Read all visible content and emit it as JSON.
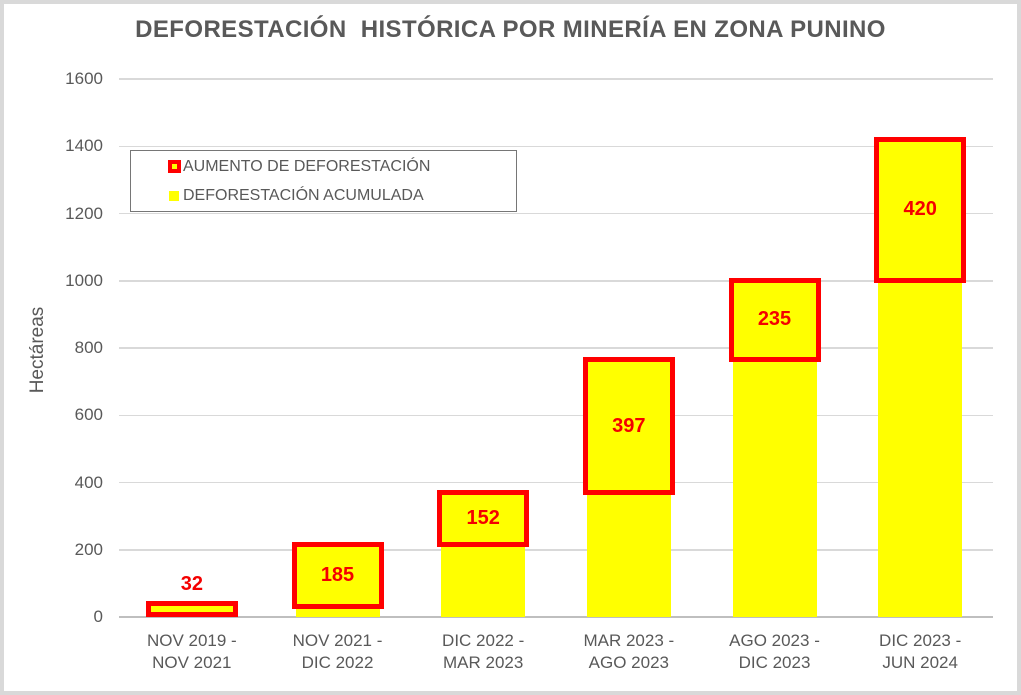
{
  "title": "DEFORESTACIÓN  HISTÓRICA POR MINERÍA EN ZONA PUNINO",
  "y_axis": {
    "label": "Hectáreas",
    "ticks": [
      0,
      200,
      400,
      600,
      800,
      1000,
      1200,
      1400,
      1600
    ]
  },
  "legend": {
    "items": [
      {
        "label": "AUMENTO DE DEFORESTACIÓN",
        "swatch": "red-outlined-yellow-square"
      },
      {
        "label": "DEFORESTACIÓN ACUMULADA",
        "swatch": "yellow-square"
      }
    ]
  },
  "colors": {
    "bar_fill": "#ffff00",
    "increase_border": "#ff0000",
    "value_label": "#f40000",
    "text": "#595959",
    "gridline": "#d9d9d9",
    "axis_line": "#bfbfbf",
    "frame_border": "#d9d9d9",
    "legend_border": "#767676"
  },
  "chart_data": {
    "type": "bar",
    "stacked": true,
    "title": "DEFORESTACIÓN  HISTÓRICA POR MINERÍA EN ZONA PUNINO",
    "xlabel": "",
    "ylabel": "Hectáreas",
    "ylim": [
      0,
      1600
    ],
    "yticks": [
      0,
      200,
      400,
      600,
      800,
      1000,
      1200,
      1400,
      1600
    ],
    "grid": true,
    "legend_position": "upper-left-inside",
    "categories": [
      "NOV 2019 - NOV 2021",
      "NOV 2021 - DIC 2022",
      "DIC 2022 - MAR 2023",
      "MAR 2023 - AGO 2023",
      "AGO 2023 - DIC 2023",
      "DIC 2023 - JUN 2024"
    ],
    "series": [
      {
        "name": "DEFORESTACIÓN ACUMULADA",
        "role": "accumulated-base",
        "values": [
          0,
          32,
          217,
          369,
          766,
          1001
        ]
      },
      {
        "name": "AUMENTO DE DEFORESTACIÓN",
        "role": "increase",
        "values": [
          32,
          185,
          152,
          397,
          235,
          420
        ]
      }
    ],
    "totals": [
      32,
      217,
      369,
      766,
      1001,
      1421
    ]
  }
}
